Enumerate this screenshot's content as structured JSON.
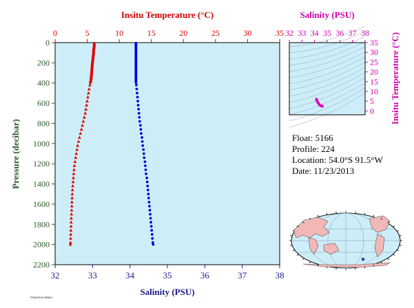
{
  "chart_data": [
    {
      "type": "scatter",
      "series": [
        {
          "axis": "temperature",
          "color": "#e00000",
          "marker": "triangle",
          "points": [
            [
              6.1,
              5
            ],
            [
              6.1,
              15
            ],
            [
              6.1,
              25
            ],
            [
              6.1,
              35
            ],
            [
              6.05,
              45
            ],
            [
              6.05,
              55
            ],
            [
              6.0,
              65
            ],
            [
              6.0,
              75
            ],
            [
              6.0,
              85
            ],
            [
              6.0,
              95
            ],
            [
              5.98,
              105
            ],
            [
              5.95,
              115
            ],
            [
              5.95,
              125
            ],
            [
              5.92,
              135
            ],
            [
              5.9,
              145
            ],
            [
              5.9,
              155
            ],
            [
              5.88,
              165
            ],
            [
              5.85,
              175
            ],
            [
              5.85,
              185
            ],
            [
              5.82,
              195
            ],
            [
              5.8,
              205
            ],
            [
              5.8,
              215
            ],
            [
              5.78,
              225
            ],
            [
              5.77,
              235
            ],
            [
              5.75,
              245
            ],
            [
              5.74,
              255
            ],
            [
              5.72,
              265
            ],
            [
              5.72,
              275
            ],
            [
              5.7,
              285
            ],
            [
              5.7,
              295
            ],
            [
              5.68,
              305
            ],
            [
              5.66,
              315
            ],
            [
              5.65,
              325
            ],
            [
              5.64,
              335
            ],
            [
              5.62,
              345
            ],
            [
              5.6,
              355
            ],
            [
              5.58,
              365
            ],
            [
              5.55,
              375
            ],
            [
              5.52,
              385
            ],
            [
              5.5,
              395
            ],
            [
              5.42,
              420
            ],
            [
              5.3,
              460
            ],
            [
              5.2,
              500
            ],
            [
              5.1,
              540
            ],
            [
              5.0,
              580
            ],
            [
              4.9,
              620
            ],
            [
              4.8,
              660
            ],
            [
              4.7,
              700
            ],
            [
              4.55,
              740
            ],
            [
              4.4,
              780
            ],
            [
              4.25,
              820
            ],
            [
              4.1,
              860
            ],
            [
              3.95,
              900
            ],
            [
              3.8,
              940
            ],
            [
              3.65,
              980
            ],
            [
              3.5,
              1020
            ],
            [
              3.4,
              1060
            ],
            [
              3.3,
              1100
            ],
            [
              3.2,
              1140
            ],
            [
              3.1,
              1180
            ],
            [
              3.0,
              1220
            ],
            [
              2.95,
              1260
            ],
            [
              2.9,
              1300
            ],
            [
              2.85,
              1340
            ],
            [
              2.8,
              1380
            ],
            [
              2.75,
              1420
            ],
            [
              2.7,
              1460
            ],
            [
              2.68,
              1500
            ],
            [
              2.65,
              1540
            ],
            [
              2.62,
              1580
            ],
            [
              2.6,
              1620
            ],
            [
              2.58,
              1660
            ],
            [
              2.55,
              1700
            ],
            [
              2.52,
              1740
            ],
            [
              2.5,
              1780
            ],
            [
              2.48,
              1820
            ],
            [
              2.46,
              1860
            ],
            [
              2.44,
              1900
            ],
            [
              2.42,
              1940
            ],
            [
              2.4,
              1980
            ],
            [
              2.38,
              2000
            ]
          ]
        },
        {
          "axis": "salinity",
          "color": "#0000e0",
          "marker": "circle",
          "points": [
            [
              34.16,
              5
            ],
            [
              34.16,
              15
            ],
            [
              34.16,
              25
            ],
            [
              34.16,
              35
            ],
            [
              34.16,
              45
            ],
            [
              34.16,
              55
            ],
            [
              34.16,
              65
            ],
            [
              34.16,
              75
            ],
            [
              34.16,
              85
            ],
            [
              34.16,
              95
            ],
            [
              34.16,
              105
            ],
            [
              34.16,
              115
            ],
            [
              34.16,
              125
            ],
            [
              34.16,
              135
            ],
            [
              34.16,
              145
            ],
            [
              34.16,
              155
            ],
            [
              34.16,
              165
            ],
            [
              34.16,
              175
            ],
            [
              34.16,
              185
            ],
            [
              34.16,
              195
            ],
            [
              34.16,
              205
            ],
            [
              34.16,
              215
            ],
            [
              34.16,
              225
            ],
            [
              34.16,
              235
            ],
            [
              34.16,
              245
            ],
            [
              34.16,
              255
            ],
            [
              34.16,
              265
            ],
            [
              34.16,
              275
            ],
            [
              34.16,
              285
            ],
            [
              34.16,
              295
            ],
            [
              34.16,
              305
            ],
            [
              34.16,
              315
            ],
            [
              34.16,
              325
            ],
            [
              34.16,
              335
            ],
            [
              34.16,
              345
            ],
            [
              34.16,
              355
            ],
            [
              34.16,
              365
            ],
            [
              34.16,
              375
            ],
            [
              34.16,
              385
            ],
            [
              34.16,
              395
            ],
            [
              34.17,
              420
            ],
            [
              34.18,
              460
            ],
            [
              34.19,
              500
            ],
            [
              34.2,
              540
            ],
            [
              34.21,
              580
            ],
            [
              34.22,
              620
            ],
            [
              34.23,
              660
            ],
            [
              34.24,
              700
            ],
            [
              34.25,
              740
            ],
            [
              34.26,
              780
            ],
            [
              34.28,
              820
            ],
            [
              34.29,
              860
            ],
            [
              34.3,
              900
            ],
            [
              34.32,
              940
            ],
            [
              34.33,
              980
            ],
            [
              34.34,
              1020
            ],
            [
              34.36,
              1060
            ],
            [
              34.37,
              1100
            ],
            [
              34.38,
              1140
            ],
            [
              34.4,
              1180
            ],
            [
              34.41,
              1220
            ],
            [
              34.42,
              1260
            ],
            [
              34.43,
              1300
            ],
            [
              34.45,
              1340
            ],
            [
              34.46,
              1380
            ],
            [
              34.47,
              1420
            ],
            [
              34.48,
              1460
            ],
            [
              34.49,
              1500
            ],
            [
              34.5,
              1540
            ],
            [
              34.51,
              1580
            ],
            [
              34.52,
              1620
            ],
            [
              34.53,
              1660
            ],
            [
              34.54,
              1700
            ],
            [
              34.55,
              1740
            ],
            [
              34.56,
              1780
            ],
            [
              34.57,
              1820
            ],
            [
              34.58,
              1860
            ],
            [
              34.59,
              1900
            ],
            [
              34.6,
              1940
            ],
            [
              34.61,
              1980
            ],
            [
              34.62,
              2000
            ]
          ]
        }
      ],
      "top_axis_label": "Insitu Temperature (°C)",
      "bottom_axis_label": "Salinity (PSU)",
      "left_axis_label": "Pressure (decibar)",
      "temperature_ticks": [
        "0",
        "5",
        "10",
        "15",
        "20",
        "25",
        "30",
        "35"
      ],
      "salinity_ticks": [
        "32",
        "33",
        "34",
        "35",
        "36",
        "37",
        "38"
      ],
      "pressure_ticks": [
        "0",
        "200",
        "400",
        "600",
        "800",
        "1000",
        "1200",
        "1400",
        "1600",
        "1800",
        "2000",
        "2200"
      ],
      "xlim_temperature": [
        0,
        35
      ],
      "xlim_salinity": [
        32,
        38
      ],
      "ylim_pressure": [
        2200,
        0
      ],
      "background": "#cdeef8"
    },
    {
      "type": "scatter",
      "top_axis_label": "Salinity (PSU)",
      "right_axis_label": "Insitu Temperature (°C)",
      "salinity_ticks": [
        "32",
        "33",
        "34",
        "35",
        "36",
        "37",
        "38"
      ],
      "temperature_ticks": [
        "0",
        "5",
        "10",
        "15",
        "20",
        "25",
        "30",
        "35"
      ],
      "xlim_salinity": [
        32,
        38
      ],
      "ylim_temperature": [
        -2,
        35
      ],
      "color": "#e000c0",
      "points": [
        [
          34.16,
          6.1
        ],
        [
          34.16,
          5.9
        ],
        [
          34.16,
          5.7
        ],
        [
          34.16,
          5.5
        ],
        [
          34.2,
          5.0
        ],
        [
          34.24,
          4.6
        ],
        [
          34.28,
          4.2
        ],
        [
          34.32,
          3.8
        ],
        [
          34.36,
          3.4
        ],
        [
          34.4,
          3.1
        ],
        [
          34.44,
          2.9
        ],
        [
          34.48,
          2.7
        ],
        [
          34.52,
          2.6
        ],
        [
          34.56,
          2.5
        ],
        [
          34.6,
          2.4
        ],
        [
          34.62,
          2.38
        ]
      ]
    }
  ],
  "float_info": {
    "float": "Float:  5166",
    "profile": "Profile:  224",
    "location": "Location:  54.0°S  91.5°W",
    "date": "Date:  11/23/2013"
  },
  "footer_code": "PGA/2014 0008/4",
  "colors": {
    "temperature": "#cc0000",
    "salinity": "#1a1a8c",
    "ts_accent": "#cc00aa",
    "pressure": "#2b5b2b",
    "ocean": "#cdeef8",
    "land": "#f2b8b8"
  }
}
